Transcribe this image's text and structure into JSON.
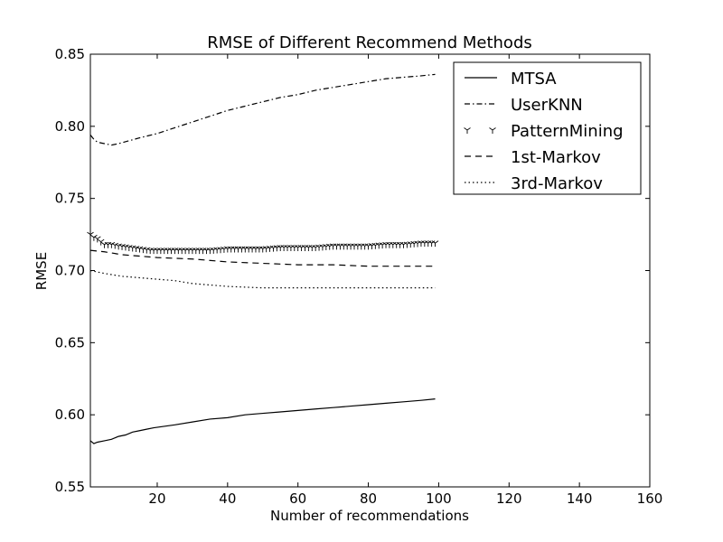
{
  "chart_data": {
    "type": "line",
    "title": "RMSE of Different Recommend Methods",
    "xlabel": "Number of recommendations",
    "ylabel": "RMSE",
    "xlim": [
      1,
      160
    ],
    "ylim": [
      0.55,
      0.85
    ],
    "xticks": [
      20,
      40,
      60,
      80,
      100,
      120,
      140,
      160
    ],
    "xtick_labels": [
      "20",
      "40",
      "60",
      "80",
      "100",
      "120",
      "140",
      "160"
    ],
    "yticks": [
      0.55,
      0.6,
      0.65,
      0.7,
      0.75,
      0.8,
      0.85
    ],
    "ytick_labels": [
      "0.55",
      "0.60",
      "0.65",
      "0.70",
      "0.75",
      "0.80",
      "0.85"
    ],
    "grid": false,
    "legend_position": "top-right",
    "color": "#000000",
    "series": [
      {
        "name": "MTSA",
        "style": "solid",
        "x": [
          1,
          2,
          3,
          5,
          7,
          9,
          11,
          13,
          15,
          17,
          19,
          22,
          25,
          30,
          35,
          40,
          45,
          50,
          55,
          60,
          65,
          70,
          75,
          80,
          85,
          90,
          95,
          99
        ],
        "y": [
          0.582,
          0.58,
          0.581,
          0.582,
          0.583,
          0.585,
          0.586,
          0.588,
          0.589,
          0.59,
          0.591,
          0.592,
          0.593,
          0.595,
          0.597,
          0.598,
          0.6,
          0.601,
          0.602,
          0.603,
          0.604,
          0.605,
          0.606,
          0.607,
          0.608,
          0.609,
          0.61,
          0.611
        ]
      },
      {
        "name": "UserKNN",
        "style": "dashdot",
        "x": [
          1,
          2,
          3,
          5,
          7,
          9,
          12,
          15,
          20,
          25,
          30,
          35,
          40,
          45,
          50,
          55,
          60,
          65,
          70,
          75,
          80,
          85,
          90,
          95,
          99
        ],
        "y": [
          0.794,
          0.791,
          0.789,
          0.788,
          0.787,
          0.788,
          0.79,
          0.792,
          0.795,
          0.799,
          0.803,
          0.807,
          0.811,
          0.814,
          0.817,
          0.82,
          0.822,
          0.825,
          0.827,
          0.829,
          0.831,
          0.833,
          0.834,
          0.835,
          0.836
        ]
      },
      {
        "name": "PatternMining",
        "style": "markers",
        "x": [
          1,
          2,
          3,
          4,
          5,
          7,
          9,
          12,
          15,
          18,
          20,
          25,
          30,
          35,
          40,
          45,
          50,
          55,
          60,
          65,
          70,
          75,
          80,
          85,
          90,
          95,
          99
        ],
        "y": [
          0.725,
          0.723,
          0.722,
          0.72,
          0.718,
          0.718,
          0.717,
          0.716,
          0.715,
          0.714,
          0.714,
          0.714,
          0.714,
          0.714,
          0.715,
          0.715,
          0.715,
          0.716,
          0.716,
          0.716,
          0.717,
          0.717,
          0.717,
          0.718,
          0.718,
          0.719,
          0.719
        ]
      },
      {
        "name": "1st-Markov",
        "style": "dashed",
        "x": [
          1,
          5,
          10,
          15,
          20,
          30,
          40,
          50,
          60,
          70,
          80,
          90,
          99
        ],
        "y": [
          0.714,
          0.713,
          0.711,
          0.71,
          0.709,
          0.708,
          0.706,
          0.705,
          0.704,
          0.704,
          0.703,
          0.703,
          0.703
        ]
      },
      {
        "name": "3rd-Markov",
        "style": "dotted",
        "x": [
          1,
          5,
          10,
          15,
          20,
          25,
          30,
          40,
          50,
          60,
          70,
          80,
          90,
          99
        ],
        "y": [
          0.7,
          0.698,
          0.696,
          0.695,
          0.694,
          0.693,
          0.691,
          0.689,
          0.688,
          0.688,
          0.688,
          0.688,
          0.688,
          0.688
        ]
      }
    ]
  }
}
